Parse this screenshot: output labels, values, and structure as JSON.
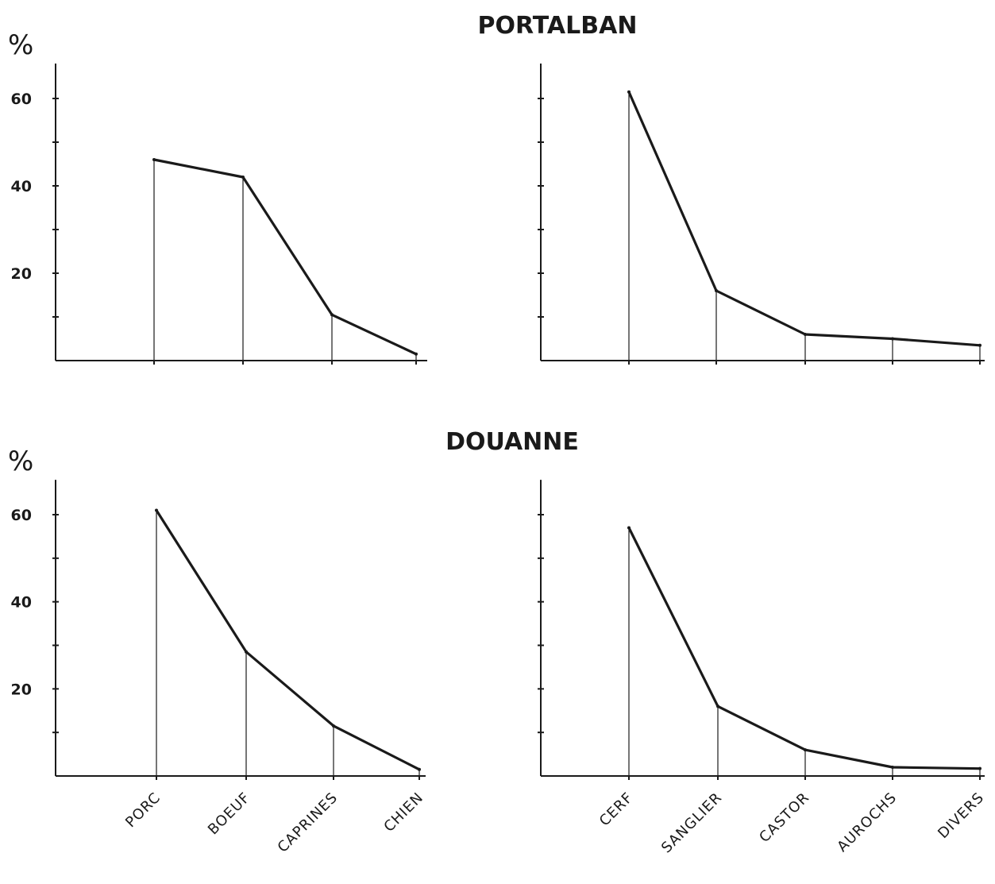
{
  "titles": {
    "top": "PORTALBAN",
    "bottom": "DOUANNE"
  },
  "unit_symbol": "%",
  "chart_data": [
    {
      "type": "line",
      "group": "PORTALBAN",
      "categories": [
        "PORC",
        "BOEUF",
        "CAPRINES",
        "CHIEN"
      ],
      "values": [
        46,
        42,
        10.5,
        1.5
      ],
      "ylim": [
        0,
        70
      ],
      "yticks": [
        20,
        40,
        60
      ],
      "ylabel": "%"
    },
    {
      "type": "line",
      "group": "PORTALBAN",
      "categories": [
        "CERF",
        "SANGLIER",
        "CASTOR",
        "AUROCHS",
        "DIVERS"
      ],
      "values": [
        61.5,
        16,
        6,
        5,
        3.5
      ],
      "ylim": [
        0,
        70
      ],
      "yticks": [
        20,
        40,
        60
      ]
    },
    {
      "type": "line",
      "group": "DOUANNE",
      "categories": [
        "PORC",
        "BOEUF",
        "CAPRINES",
        "CHIEN"
      ],
      "values": [
        61,
        28.5,
        11.5,
        1.5
      ],
      "ylim": [
        0,
        70
      ],
      "yticks": [
        20,
        40,
        60
      ],
      "ylabel": "%"
    },
    {
      "type": "line",
      "group": "DOUANNE",
      "categories": [
        "CERF",
        "SANGLIER",
        "CASTOR",
        "AUROCHS",
        "DIVERS"
      ],
      "values": [
        57,
        16,
        6,
        2,
        1.7
      ],
      "ylim": [
        0,
        70
      ],
      "yticks": [
        20,
        40,
        60
      ]
    }
  ],
  "x_axis_labels": {
    "domestic": [
      "PORC",
      "BOEUF",
      "CAPRINES",
      "CHIEN"
    ],
    "wild": [
      "CERF",
      "SANGLIER",
      "CASTOR",
      "AUROCHS",
      "DIVERS"
    ]
  }
}
